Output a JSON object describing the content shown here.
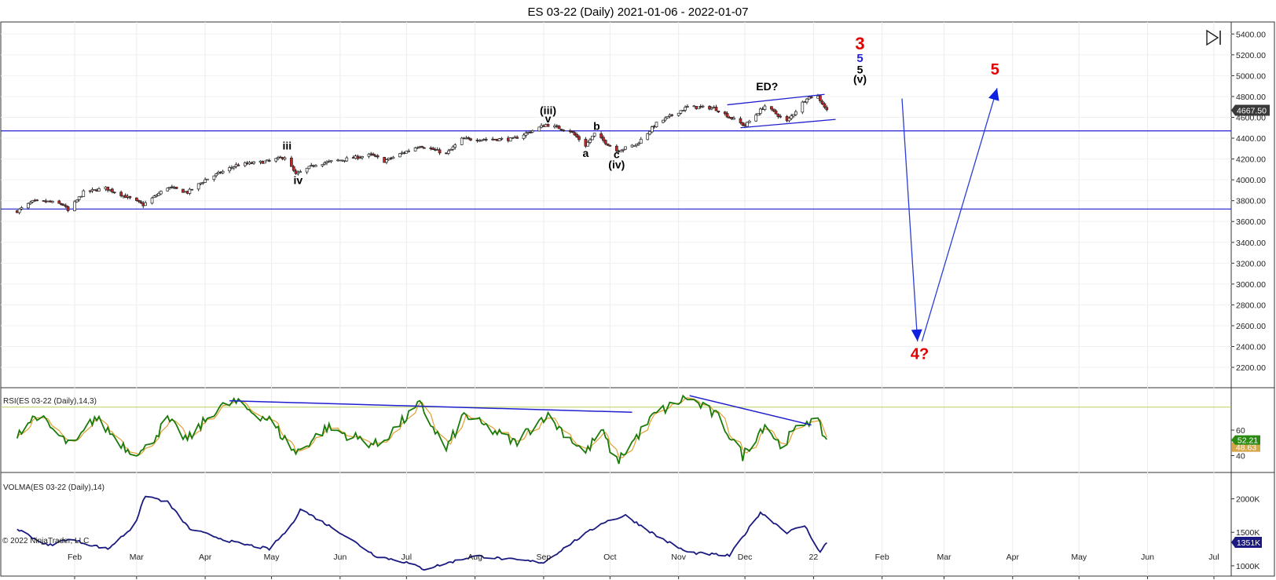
{
  "title": "ES 03-22 (Daily)  2021-01-06 - 2022-01-07",
  "copyright": "© 2022 NinjaTrader, LLC",
  "toolbar_icon": "scroll-to-end-icon",
  "colors": {
    "price_candle": "#222222",
    "down_candle": "#cc2222",
    "trend_line": "#1f1fd0",
    "projection": "#2a3fd6",
    "rsi_line": "#1a7a0a",
    "rsi_avg": "#e0a030",
    "rsi_level": "#b8d060",
    "volma_line": "#1a1a80",
    "wave_red": "#e00000",
    "wave_blue": "#1f1fd0"
  },
  "chart_data": {
    "type": "candlestick",
    "x_axis": {
      "labels": [
        "Feb",
        "Mar",
        "Apr",
        "May",
        "Jun",
        "Jul",
        "Aug",
        "Sep",
        "Oct",
        "Nov",
        "Dec",
        "22",
        "Feb",
        "Mar",
        "Apr",
        "May",
        "Jun",
        "Jul"
      ],
      "dates": [
        "2021-02-01",
        "2021-03-01",
        "2021-04-01",
        "2021-05-01",
        "2021-06-01",
        "2021-07-01",
        "2021-08-01",
        "2021-09-01",
        "2021-10-01",
        "2021-11-01",
        "2021-12-01",
        "2022-01-01",
        "2022-02-01",
        "2022-03-01",
        "2022-04-01",
        "2022-05-01",
        "2022-06-01",
        "2022-07-01"
      ]
    },
    "price_panel": {
      "y_ticks": [
        "5400.00",
        "5200.00",
        "5000.00",
        "4800.00",
        "4600.00",
        "4400.00",
        "4200.00",
        "4000.00",
        "3800.00",
        "3600.00",
        "3400.00",
        "3200.00",
        "3000.00",
        "2800.00",
        "2600.00",
        "2400.00",
        "2200.00"
      ],
      "ylim": [
        2050,
        5470
      ],
      "last_price": "4667.50",
      "horizontal_lines": [
        4470,
        3720
      ],
      "path": [
        [
          "2021-01-06",
          3700
        ],
        [
          "2021-01-13",
          3790
        ],
        [
          "2021-01-20",
          3790
        ],
        [
          "2021-01-27",
          3760
        ],
        [
          "2021-01-29",
          3700
        ],
        [
          "2021-02-05",
          3880
        ],
        [
          "2021-02-15",
          3920
        ],
        [
          "2021-02-22",
          3860
        ],
        [
          "2021-03-04",
          3760
        ],
        [
          "2021-03-15",
          3930
        ],
        [
          "2021-03-24",
          3880
        ],
        [
          "2021-04-01",
          4000
        ],
        [
          "2021-04-15",
          4140
        ],
        [
          "2021-04-30",
          4180
        ],
        [
          "2021-05-07",
          4220
        ],
        [
          "2021-05-12",
          4050
        ],
        [
          "2021-05-21",
          4150
        ],
        [
          "2021-06-15",
          4240
        ],
        [
          "2021-06-21",
          4180
        ],
        [
          "2021-07-07",
          4330
        ],
        [
          "2021-07-19",
          4250
        ],
        [
          "2021-07-26",
          4390
        ],
        [
          "2021-08-18",
          4390
        ],
        [
          "2021-09-02",
          4530
        ],
        [
          "2021-09-13",
          4470
        ],
        [
          "2021-09-20",
          4330
        ],
        [
          "2021-09-24",
          4440
        ],
        [
          "2021-10-04",
          4280
        ],
        [
          "2021-10-13",
          4340
        ],
        [
          "2021-10-22",
          4540
        ],
        [
          "2021-11-05",
          4700
        ],
        [
          "2021-11-17",
          4690
        ],
        [
          "2021-11-26",
          4580
        ],
        [
          "2021-12-01",
          4520
        ],
        [
          "2021-12-10",
          4710
        ],
        [
          "2021-12-20",
          4560
        ],
        [
          "2021-12-29",
          4790
        ],
        [
          "2022-01-03",
          4800
        ],
        [
          "2022-01-07",
          4667.5
        ]
      ],
      "wave_labels": [
        {
          "text": "iii",
          "date": "2021-05-08",
          "price": 4290,
          "color": "black"
        },
        {
          "text": "iv",
          "date": "2021-05-13",
          "price": 3960,
          "color": "black"
        },
        {
          "text": "(iii)",
          "date": "2021-09-03",
          "price": 4630,
          "color": "black"
        },
        {
          "text": "v",
          "date": "2021-09-03",
          "price": 4550,
          "color": "black"
        },
        {
          "text": "a",
          "date": "2021-09-20",
          "price": 4220,
          "color": "black"
        },
        {
          "text": "b",
          "date": "2021-09-25",
          "price": 4480,
          "color": "black"
        },
        {
          "text": "c",
          "date": "2021-10-04",
          "price": 4210,
          "color": "black"
        },
        {
          "text": "(iv)",
          "date": "2021-10-04",
          "price": 4110,
          "color": "black"
        },
        {
          "text": "ED?",
          "date": "2021-12-11",
          "price": 4860,
          "color": "black"
        },
        {
          "text": "3",
          "date": "2022-01-22",
          "price": 5250,
          "color": "red"
        },
        {
          "text": "5",
          "date": "2022-01-22",
          "price": 5130,
          "color": "blue"
        },
        {
          "text": "5",
          "date": "2022-01-22",
          "price": 5020,
          "color": "black"
        },
        {
          "text": "(v)",
          "date": "2022-01-22",
          "price": 4930,
          "color": "black"
        },
        {
          "text": "5",
          "date": "2022-03-24",
          "price": 5010,
          "color": "red"
        },
        {
          "text": "4?",
          "date": "2022-02-18",
          "price": 2280,
          "color": "red"
        }
      ],
      "trend_lines": [
        {
          "from": [
            "2021-11-23",
            4720
          ],
          "to": [
            "2022-01-06",
            4820
          ]
        },
        {
          "from": [
            "2021-11-29",
            4500
          ],
          "to": [
            "2022-01-11",
            4580
          ]
        }
      ],
      "projection": [
        {
          "from": [
            "2022-02-10",
            4780
          ],
          "to": [
            "2022-02-17",
            2450
          ]
        },
        {
          "from": [
            "2022-02-19",
            2450
          ],
          "to": [
            "2022-03-25",
            4880
          ]
        }
      ]
    },
    "rsi_panel": {
      "label": "RSI(ES 03-22 (Daily),14,3)",
      "y_ticks": [
        "60",
        "40"
      ],
      "ylim": [
        28,
        92
      ],
      "upper_level": 78,
      "last_values": [
        "52.21",
        "48.63"
      ],
      "path": [
        [
          "2021-01-06",
          58
        ],
        [
          "2021-01-15",
          72
        ],
        [
          "2021-01-27",
          52
        ],
        [
          "2021-02-01",
          48
        ],
        [
          "2021-02-10",
          70
        ],
        [
          "2021-02-25",
          45
        ],
        [
          "2021-03-04",
          43
        ],
        [
          "2021-03-15",
          68
        ],
        [
          "2021-03-24",
          52
        ],
        [
          "2021-04-05",
          75
        ],
        [
          "2021-04-14",
          82
        ],
        [
          "2021-04-30",
          68
        ],
        [
          "2021-05-12",
          42
        ],
        [
          "2021-05-26",
          62
        ],
        [
          "2021-06-18",
          48
        ],
        [
          "2021-07-07",
          80
        ],
        [
          "2021-07-19",
          45
        ],
        [
          "2021-07-27",
          72
        ],
        [
          "2021-08-19",
          50
        ],
        [
          "2021-09-02",
          72
        ],
        [
          "2021-09-20",
          42
        ],
        [
          "2021-09-27",
          60
        ],
        [
          "2021-10-04",
          35
        ],
        [
          "2021-10-21",
          72
        ],
        [
          "2021-11-05",
          86
        ],
        [
          "2021-11-19",
          70
        ],
        [
          "2021-11-30",
          40
        ],
        [
          "2021-12-10",
          65
        ],
        [
          "2021-12-17",
          48
        ],
        [
          "2021-12-29",
          68
        ],
        [
          "2022-01-03",
          65
        ],
        [
          "2022-01-07",
          52
        ]
      ],
      "trend_lines": [
        {
          "from": [
            "2021-04-12",
            83
          ],
          "to": [
            "2021-10-11",
            74
          ]
        },
        {
          "from": [
            "2021-11-06",
            87
          ],
          "to": [
            "2021-12-31",
            64
          ]
        }
      ]
    },
    "volma_panel": {
      "label": "VOLMA(ES 03-22 (Daily),14)",
      "y_ticks": [
        "2000K",
        "1500K",
        "1000K"
      ],
      "ylim": [
        870,
        2370
      ],
      "last_value": "1351K",
      "path": [
        [
          "2021-01-06",
          1550
        ],
        [
          "2021-01-20",
          1300
        ],
        [
          "2021-01-29",
          1400
        ],
        [
          "2021-02-16",
          1250
        ],
        [
          "2021-02-28",
          1600
        ],
        [
          "2021-03-05",
          2050
        ],
        [
          "2021-03-15",
          1950
        ],
        [
          "2021-03-25",
          1550
        ],
        [
          "2021-04-14",
          1350
        ],
        [
          "2021-04-30",
          1250
        ],
        [
          "2021-05-10",
          1600
        ],
        [
          "2021-05-14",
          1850
        ],
        [
          "2021-06-01",
          1500
        ],
        [
          "2021-06-17",
          1150
        ],
        [
          "2021-07-01",
          1050
        ],
        [
          "2021-07-09",
          950
        ],
        [
          "2021-08-01",
          1150
        ],
        [
          "2021-08-15",
          1100
        ],
        [
          "2021-09-01",
          1050
        ],
        [
          "2021-09-14",
          1350
        ],
        [
          "2021-09-28",
          1650
        ],
        [
          "2021-10-08",
          1750
        ],
        [
          "2021-10-22",
          1450
        ],
        [
          "2021-11-05",
          1200
        ],
        [
          "2021-11-24",
          1150
        ],
        [
          "2021-12-08",
          1800
        ],
        [
          "2021-12-20",
          1500
        ],
        [
          "2021-12-28",
          1600
        ],
        [
          "2022-01-04",
          1200
        ],
        [
          "2022-01-07",
          1351
        ]
      ]
    }
  }
}
